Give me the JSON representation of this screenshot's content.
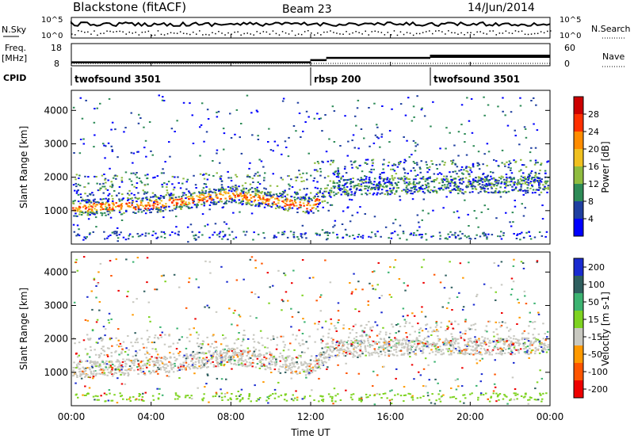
{
  "header": {
    "station": "Blackstone (fitACF)",
    "beam": "Beam 23",
    "date": "14/Jun/2014"
  },
  "params": {
    "nsky_label": "N.Sky",
    "nsearch_label": "N.Search",
    "noise_ticks": [
      "10^5",
      "10^0"
    ],
    "freq_label": "Freq.",
    "freq_unit": "[MHz]",
    "freq_ticks": [
      "18",
      "8"
    ],
    "nave_label": "Nave",
    "nave_ticks": [
      "60",
      "0"
    ],
    "cpid_label": "CPID",
    "cpid_segments": [
      {
        "name": "twofsound 3501",
        "start_h": 0
      },
      {
        "name": "rbsp 200",
        "start_h": 12
      },
      {
        "name": "twofsound 3501",
        "start_h": 18
      }
    ],
    "freq_steps": [
      {
        "from_h": 0,
        "to_h": 12,
        "value": 10
      },
      {
        "from_h": 12,
        "to_h": 12.8,
        "value": 11
      },
      {
        "from_h": 12.8,
        "to_h": 18,
        "value": 12
      },
      {
        "from_h": 18,
        "to_h": 24,
        "value": 13
      }
    ]
  },
  "chart_data": [
    {
      "type": "heatmap",
      "name": "power",
      "ylabel": "Slant Range [km]",
      "yticks": [
        1000,
        2000,
        3000,
        4000
      ],
      "ylim": [
        0,
        4600
      ],
      "colorbar_label": "Power [dB]",
      "colorbar_ticks": [
        4,
        8,
        12,
        16,
        20,
        24,
        28
      ],
      "colors": [
        "#0000ff",
        "#1f3fa0",
        "#2e8b57",
        "#8fbc3f",
        "#f0c020",
        "#ff8c00",
        "#ff3000",
        "#cc0000"
      ],
      "echo_band_km": [
        [
          0,
          1100
        ],
        [
          4,
          1200
        ],
        [
          8,
          1500
        ],
        [
          12,
          1150
        ],
        [
          13,
          1700
        ],
        [
          18,
          1800
        ],
        [
          24,
          1800
        ]
      ]
    },
    {
      "type": "heatmap",
      "name": "velocity",
      "ylabel": "Slant Range [km]",
      "yticks": [
        1000,
        2000,
        3000,
        4000
      ],
      "ylim": [
        0,
        4600
      ],
      "colorbar_label": "Velocity [m s-1]",
      "colorbar_ticks": [
        200,
        100,
        50,
        15,
        -15,
        -50,
        -100,
        -200
      ],
      "colors": [
        "#1a2bd0",
        "#2f5f5f",
        "#3cb371",
        "#7ed321",
        "#c8c8c0",
        "#ff9900",
        "#ff5500",
        "#ee0000"
      ]
    }
  ],
  "xaxis": {
    "label": "Time UT",
    "ticks": [
      "00:00",
      "04:00",
      "08:00",
      "12:00",
      "16:00",
      "20:00",
      "00:00"
    ],
    "range_h": [
      0,
      24
    ]
  }
}
